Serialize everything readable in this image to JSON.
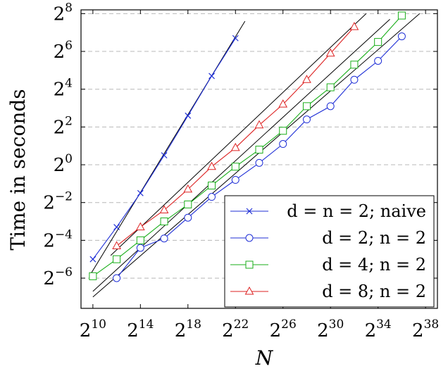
{
  "chart_data": {
    "type": "line",
    "xlabel": "N",
    "ylabel": "Time in seconds",
    "x_scale": "log2",
    "y_scale": "log2",
    "xlim_exp": [
      9,
      39
    ],
    "ylim_exp": [
      -7.6,
      8.2
    ],
    "x_ticks": [
      {
        "base": "2",
        "exp": "10",
        "value": 10
      },
      {
        "base": "2",
        "exp": "14",
        "value": 14
      },
      {
        "base": "2",
        "exp": "18",
        "value": 18
      },
      {
        "base": "2",
        "exp": "22",
        "value": 22
      },
      {
        "base": "2",
        "exp": "26",
        "value": 26
      },
      {
        "base": "2",
        "exp": "30",
        "value": 30
      },
      {
        "base": "2",
        "exp": "34",
        "value": 34
      },
      {
        "base": "2",
        "exp": "38",
        "value": 38
      }
    ],
    "y_ticks": [
      {
        "base": "2",
        "exp": "8",
        "value": 8
      },
      {
        "base": "2",
        "exp": "6",
        "value": 6
      },
      {
        "base": "2",
        "exp": "4",
        "value": 4
      },
      {
        "base": "2",
        "exp": "2",
        "value": 2
      },
      {
        "base": "2",
        "exp": "0",
        "value": 0
      },
      {
        "base": "2",
        "exp": "−2",
        "value": -2
      },
      {
        "base": "2",
        "exp": "−4",
        "value": -4
      },
      {
        "base": "2",
        "exp": "−6",
        "value": -6
      }
    ],
    "grid": "horizontal-dashed",
    "legend_position": "bottom-right",
    "series": [
      {
        "name": "d = n = 2; naive",
        "color": "#1f2fd6",
        "marker": "x",
        "points": [
          [
            10,
            -5
          ],
          [
            12,
            -3.3
          ],
          [
            14,
            -1.5
          ],
          [
            16,
            0.5
          ],
          [
            18,
            2.6
          ],
          [
            20,
            4.7
          ],
          [
            22,
            6.7
          ]
        ],
        "fit": [
          [
            9.8,
            -5.8
          ],
          [
            22.8,
            7.6
          ]
        ]
      },
      {
        "name": "d = 2; n = 2",
        "color": "#1f2fd6",
        "marker": "circle",
        "points": [
          [
            12,
            -6
          ],
          [
            14,
            -4.4
          ],
          [
            16,
            -3.9
          ],
          [
            18,
            -2.8
          ],
          [
            20,
            -1.7
          ],
          [
            22,
            -0.8
          ],
          [
            24,
            0.1
          ],
          [
            26,
            1.1
          ],
          [
            28,
            2.4
          ],
          [
            30,
            3.1
          ],
          [
            32,
            4.5
          ],
          [
            34,
            5.5
          ],
          [
            36,
            6.8
          ]
        ],
        "fit": [
          [
            10,
            -7
          ],
          [
            37.5,
            8
          ]
        ]
      },
      {
        "name": "d = 4; n = 2",
        "color": "#1aae1a",
        "marker": "square",
        "points": [
          [
            10,
            -5.9
          ],
          [
            12,
            -5
          ],
          [
            14,
            -4
          ],
          [
            16,
            -3
          ],
          [
            18,
            -2.1
          ],
          [
            20,
            -1.1
          ],
          [
            22,
            -0.1
          ],
          [
            24,
            0.8
          ],
          [
            26,
            1.8
          ],
          [
            28,
            3.1
          ],
          [
            30,
            4.1
          ],
          [
            32,
            5.3
          ],
          [
            34,
            6.5
          ],
          [
            36,
            7.9
          ]
        ],
        "fit": [
          [
            10,
            -6.7
          ],
          [
            35,
            7.7
          ]
        ]
      },
      {
        "name": "d = 8; n = 2",
        "color": "#dd2222",
        "marker": "triangle",
        "points": [
          [
            12,
            -4.3
          ],
          [
            14,
            -3.3
          ],
          [
            16,
            -2.4
          ],
          [
            18,
            -1.3
          ],
          [
            20,
            -0.1
          ],
          [
            22,
            0.9
          ],
          [
            24,
            2.1
          ],
          [
            26,
            3.2
          ],
          [
            28,
            4.5
          ],
          [
            30,
            5.9
          ],
          [
            32,
            7.3
          ]
        ],
        "fit": [
          [
            11.5,
            -4.8
          ],
          [
            33,
            8
          ]
        ]
      }
    ]
  }
}
